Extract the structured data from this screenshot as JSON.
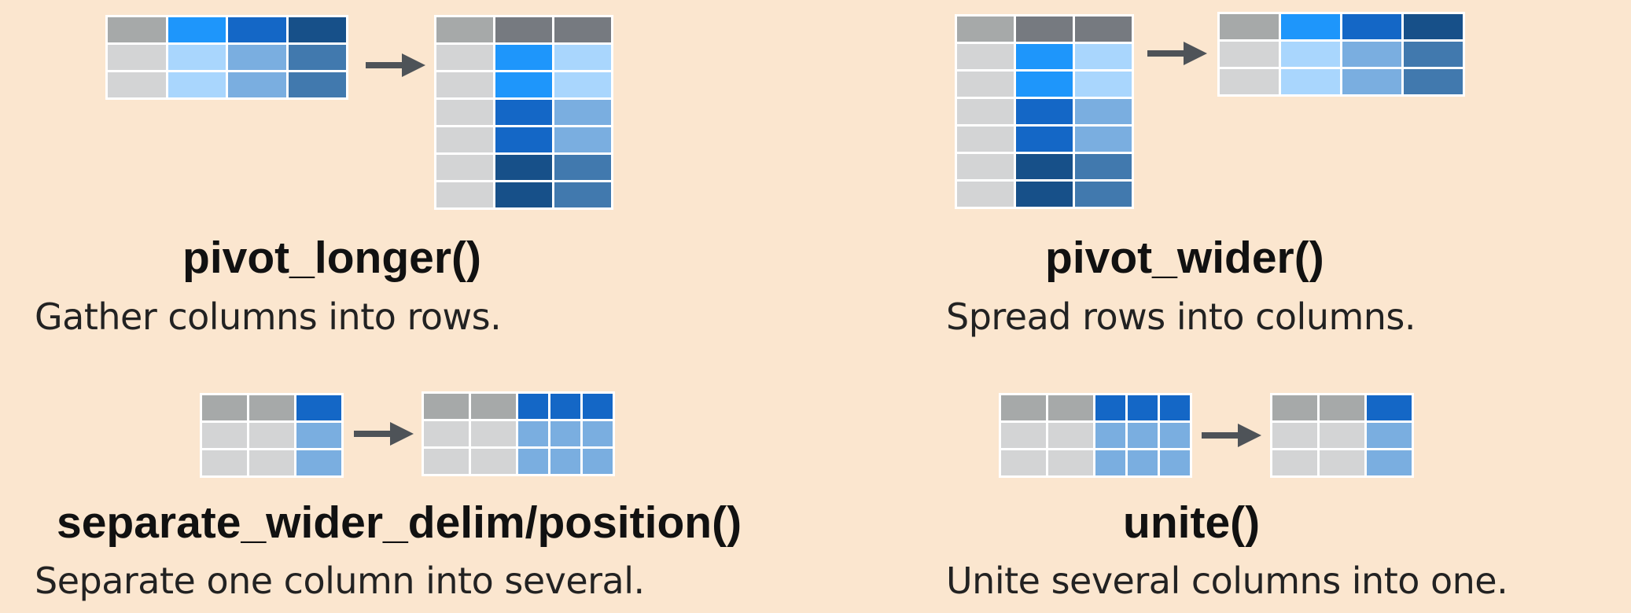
{
  "colors": {
    "background": "#fbe6cf",
    "grid_border": "#ffffff",
    "header_gray": "#a6a9a9",
    "header_slate": "#767a80",
    "body_gray": "#d3d4d5",
    "blue_bright": "#1e96fb",
    "blue_bright_light": "#a9d6fd",
    "blue_mid": "#1467c6",
    "blue_mid_light": "#7aaee0",
    "blue_dark": "#175089",
    "blue_dark_light": "#4179ae",
    "arrow": "#4e5358"
  },
  "sections": [
    {
      "id": "pivot_longer",
      "title": "pivot_longer()",
      "description": "Gather columns into rows.",
      "before_table": [
        [
          "header_gray",
          "blue_bright",
          "blue_mid",
          "blue_dark"
        ],
        [
          "body_gray",
          "blue_bright_light",
          "blue_mid_light",
          "blue_dark_light"
        ],
        [
          "body_gray",
          "blue_bright_light",
          "blue_mid_light",
          "blue_dark_light"
        ]
      ],
      "after_table": [
        [
          "header_gray",
          "header_slate",
          "header_slate"
        ],
        [
          "body_gray",
          "blue_bright",
          "blue_bright_light"
        ],
        [
          "body_gray",
          "blue_bright",
          "blue_bright_light"
        ],
        [
          "body_gray",
          "blue_mid",
          "blue_mid_light"
        ],
        [
          "body_gray",
          "blue_mid",
          "blue_mid_light"
        ],
        [
          "body_gray",
          "blue_dark",
          "blue_dark_light"
        ],
        [
          "body_gray",
          "blue_dark",
          "blue_dark_light"
        ]
      ]
    },
    {
      "id": "pivot_wider",
      "title": "pivot_wider()",
      "description": "Spread rows into columns.",
      "before_table": [
        [
          "header_gray",
          "header_slate",
          "header_slate"
        ],
        [
          "body_gray",
          "blue_bright",
          "blue_bright_light"
        ],
        [
          "body_gray",
          "blue_bright",
          "blue_bright_light"
        ],
        [
          "body_gray",
          "blue_mid",
          "blue_mid_light"
        ],
        [
          "body_gray",
          "blue_mid",
          "blue_mid_light"
        ],
        [
          "body_gray",
          "blue_dark",
          "blue_dark_light"
        ],
        [
          "body_gray",
          "blue_dark",
          "blue_dark_light"
        ]
      ],
      "after_table": [
        [
          "header_gray",
          "blue_bright",
          "blue_mid",
          "blue_dark"
        ],
        [
          "body_gray",
          "blue_bright_light",
          "blue_mid_light",
          "blue_dark_light"
        ],
        [
          "body_gray",
          "blue_bright_light",
          "blue_mid_light",
          "blue_dark_light"
        ]
      ]
    },
    {
      "id": "separate",
      "title": "separate_wider_delim/position()",
      "description": "Separate one column into several.",
      "before_table": [
        [
          "header_gray",
          "header_gray",
          "blue_mid"
        ],
        [
          "body_gray",
          "body_gray",
          "blue_mid_light"
        ],
        [
          "body_gray",
          "body_gray",
          "blue_mid_light"
        ]
      ],
      "after_table": [
        [
          "header_gray",
          "header_gray",
          "blue_mid",
          "blue_mid",
          "blue_mid"
        ],
        [
          "body_gray",
          "body_gray",
          "blue_mid_light",
          "blue_mid_light",
          "blue_mid_light"
        ],
        [
          "body_gray",
          "body_gray",
          "blue_mid_light",
          "blue_mid_light",
          "blue_mid_light"
        ]
      ]
    },
    {
      "id": "unite",
      "title": "unite()",
      "description": "Unite several columns into one.",
      "before_table": [
        [
          "header_gray",
          "header_gray",
          "blue_mid",
          "blue_mid",
          "blue_mid"
        ],
        [
          "body_gray",
          "body_gray",
          "blue_mid_light",
          "blue_mid_light",
          "blue_mid_light"
        ],
        [
          "body_gray",
          "body_gray",
          "blue_mid_light",
          "blue_mid_light",
          "blue_mid_light"
        ]
      ],
      "after_table": [
        [
          "header_gray",
          "header_gray",
          "blue_mid"
        ],
        [
          "body_gray",
          "body_gray",
          "blue_mid_light"
        ],
        [
          "body_gray",
          "body_gray",
          "blue_mid_light"
        ]
      ]
    }
  ]
}
